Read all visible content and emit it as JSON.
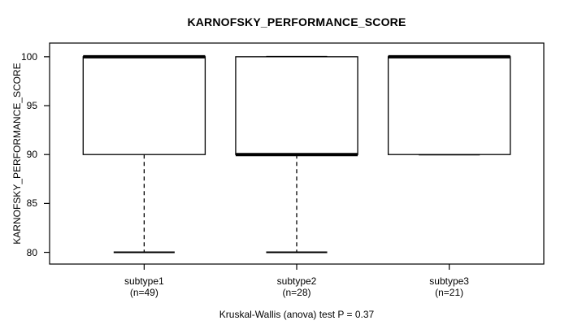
{
  "chart_data": {
    "type": "boxplot",
    "title": "KARNOFSKY_PERFORMANCE_SCORE",
    "xlabel": "",
    "ylabel": "KARNOFSKY_PERFORMANCE_SCORE",
    "annotation": "Kruskal-Wallis (anova) test P = 0.37",
    "y_ticks": [
      80,
      85,
      90,
      95,
      100
    ],
    "ylim": [
      78.8,
      101.4
    ],
    "grid": false,
    "legend": "none",
    "groups": [
      {
        "label": "subtype1",
        "sublabel": "(n=49)",
        "n": 49,
        "stats": {
          "min": 80,
          "q1": 90,
          "median": 100,
          "q3": 100,
          "max": 100
        }
      },
      {
        "label": "subtype2",
        "sublabel": "(n=28)",
        "n": 28,
        "stats": {
          "min": 80,
          "q1": 90,
          "median": 90,
          "q3": 100,
          "max": 100
        }
      },
      {
        "label": "subtype3",
        "sublabel": "(n=21)",
        "n": 21,
        "stats": {
          "min": 90,
          "q1": 90,
          "median": 100,
          "q3": 100,
          "max": 100
        }
      }
    ],
    "colors": {
      "line": "#000000",
      "box_fill": "#ffffff",
      "background": "#ffffff",
      "text": "#000000"
    }
  }
}
